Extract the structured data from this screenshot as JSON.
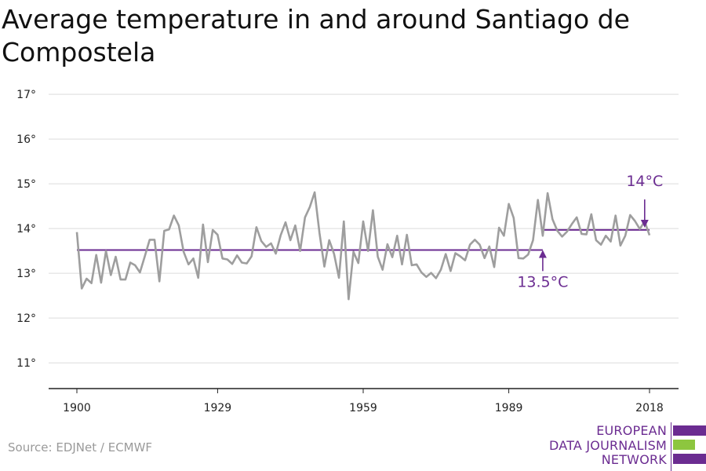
{
  "title": "Average temperature in and around Santiago de Compostela",
  "source": "Source: EDJNet / ECMWF",
  "logo": {
    "lines": [
      "EUROPEAN",
      "DATA JOURNALISM",
      "NETWORK"
    ],
    "colors": {
      "purple": "#6b2c91",
      "green": "#8dc63f"
    }
  },
  "colors": {
    "series": "#9e9e9e",
    "reference": "#6b2c91",
    "grid": "#dcdcdc",
    "axis": "#222222"
  },
  "chart_data": {
    "type": "line",
    "title": "Average temperature in and around Santiago de Compostela",
    "xlabel": "",
    "ylabel": "",
    "xlim": [
      1900,
      2018
    ],
    "ylim": [
      10.6,
      17.3
    ],
    "x_ticks": [
      1900,
      1929,
      1959,
      1989,
      2018
    ],
    "y_ticks": [
      11,
      12,
      13,
      14,
      15,
      16,
      17
    ],
    "y_tick_labels": [
      "11°",
      "12°",
      "13°",
      "14°",
      "15°",
      "16°",
      "17°"
    ],
    "grid": "horizontal",
    "series": [
      {
        "x": [
          1900,
          1901,
          1902,
          1903,
          1904,
          1905,
          1906,
          1907,
          1908,
          1909,
          1910,
          1911,
          1912,
          1913,
          1914,
          1915,
          1916,
          1917,
          1918,
          1919,
          1920,
          1921,
          1922,
          1923,
          1924,
          1925,
          1926,
          1927,
          1928,
          1929,
          1930,
          1931,
          1932,
          1933,
          1934,
          1935,
          1936,
          1937,
          1938,
          1939,
          1940,
          1941,
          1942,
          1943,
          1944,
          1945,
          1946,
          1947,
          1948,
          1949,
          1950,
          1951,
          1952,
          1953,
          1954,
          1955,
          1956,
          1957,
          1958,
          1959,
          1960,
          1961,
          1962,
          1963,
          1964,
          1965,
          1966,
          1967,
          1968,
          1969,
          1970,
          1971,
          1972,
          1973,
          1974,
          1975,
          1976,
          1977,
          1978,
          1979,
          1980,
          1981,
          1982,
          1983,
          1984,
          1985,
          1986,
          1987,
          1988,
          1989,
          1990,
          1991,
          1992,
          1993,
          1994,
          1995,
          1996,
          1997,
          1998,
          1999,
          2000,
          2001,
          2002,
          2003,
          2004,
          2005,
          2006,
          2007,
          2008,
          2009,
          2010,
          2011,
          2012,
          2013,
          2014,
          2015,
          2016,
          2017,
          2018
        ],
        "values": [
          13.92,
          12.66,
          12.88,
          12.78,
          13.41,
          12.79,
          13.5,
          12.96,
          13.37,
          12.86,
          12.86,
          13.24,
          13.18,
          13.02,
          13.38,
          13.75,
          13.75,
          12.82,
          13.95,
          13.98,
          14.29,
          14.07,
          13.48,
          13.2,
          13.33,
          12.9,
          14.09,
          13.25,
          13.97,
          13.86,
          13.33,
          13.31,
          13.21,
          13.4,
          13.24,
          13.22,
          13.38,
          14.03,
          13.72,
          13.59,
          13.67,
          13.44,
          13.85,
          14.14,
          13.74,
          14.07,
          13.5,
          14.25,
          14.48,
          14.81,
          13.9,
          13.15,
          13.74,
          13.43,
          12.9,
          14.16,
          12.42,
          13.48,
          13.23,
          14.16,
          13.5,
          14.41,
          13.37,
          13.08,
          13.65,
          13.36,
          13.84,
          13.2,
          13.86,
          13.18,
          13.2,
          13.02,
          12.92,
          13.01,
          12.89,
          13.08,
          13.43,
          13.05,
          13.45,
          13.38,
          13.29,
          13.64,
          13.75,
          13.64,
          13.34,
          13.6,
          13.14,
          14.02,
          13.84,
          14.55,
          14.24,
          13.34,
          13.33,
          13.42,
          13.74,
          14.64,
          13.84,
          14.79,
          14.21,
          13.95,
          13.82,
          13.93,
          14.1,
          14.25,
          13.88,
          13.87,
          14.32,
          13.74,
          13.64,
          13.84,
          13.71,
          14.29,
          13.62,
          13.84,
          14.3,
          14.17,
          13.99,
          14.16,
          13.85
        ]
      }
    ],
    "annotations": [
      {
        "text": "13.5°C",
        "value": 13.52,
        "x_from": 1900,
        "x_to": 1996,
        "label_x": 1996,
        "label_y": 12.7,
        "arrow_from_y": 13.05,
        "arrow_to_y": 13.52
      },
      {
        "text": "14°C",
        "value": 13.97,
        "x_from": 1996,
        "x_to": 2018,
        "label_x": 2017,
        "label_y": 14.95,
        "arrow_from_y": 14.65,
        "arrow_to_y": 14.02
      }
    ]
  }
}
